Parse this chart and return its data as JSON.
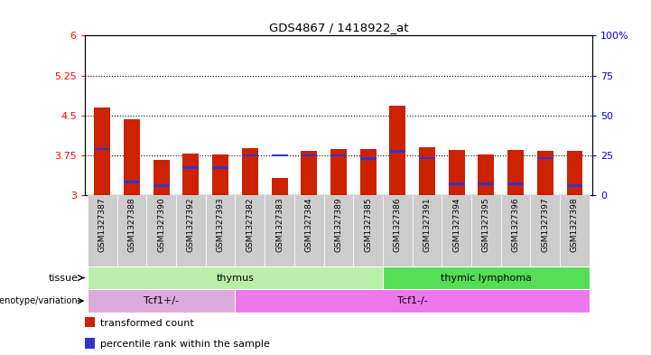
{
  "title": "GDS4867 / 1418922_at",
  "samples": [
    "GSM1327387",
    "GSM1327388",
    "GSM1327390",
    "GSM1327392",
    "GSM1327393",
    "GSM1327382",
    "GSM1327383",
    "GSM1327384",
    "GSM1327389",
    "GSM1327385",
    "GSM1327386",
    "GSM1327391",
    "GSM1327394",
    "GSM1327395",
    "GSM1327396",
    "GSM1327397",
    "GSM1327398"
  ],
  "bar_values": [
    4.65,
    4.43,
    3.67,
    3.78,
    3.77,
    3.88,
    3.32,
    3.83,
    3.87,
    3.86,
    4.68,
    3.9,
    3.85,
    3.77,
    3.85,
    3.84,
    3.84
  ],
  "blue_positions": [
    3.87,
    3.25,
    3.18,
    3.52,
    3.52,
    3.75,
    3.75,
    3.75,
    3.75,
    3.69,
    3.83,
    3.7,
    3.22,
    3.22,
    3.22,
    3.7,
    3.18
  ],
  "y_min": 3.0,
  "y_max": 6.0,
  "y_ticks_left": [
    3.0,
    3.75,
    4.5,
    5.25,
    6.0
  ],
  "y_ticks_left_labels": [
    "3",
    "3.75",
    "4.5",
    "5.25",
    "6"
  ],
  "y_ticks_right": [
    0,
    25,
    50,
    75,
    100
  ],
  "bar_color": "#CC2200",
  "blue_color": "#3333CC",
  "dotted_lines": [
    3.75,
    4.5,
    5.25
  ],
  "tissue_labels": [
    {
      "text": "thymus",
      "start": 0,
      "end": 9,
      "color": "#BBEEAA"
    },
    {
      "text": "thymic lymphoma",
      "start": 10,
      "end": 16,
      "color": "#55DD55"
    }
  ],
  "genotype_labels": [
    {
      "text": "Tcf1+/-",
      "start": 0,
      "end": 4,
      "color": "#DDAADD"
    },
    {
      "text": "Tcf1-/-",
      "start": 5,
      "end": 16,
      "color": "#EE77EE"
    }
  ],
  "legend_items": [
    {
      "color": "#CC2200",
      "label": "transformed count"
    },
    {
      "color": "#3333CC",
      "label": "percentile rank within the sample"
    }
  ],
  "gray_box_color": "#CCCCCC"
}
